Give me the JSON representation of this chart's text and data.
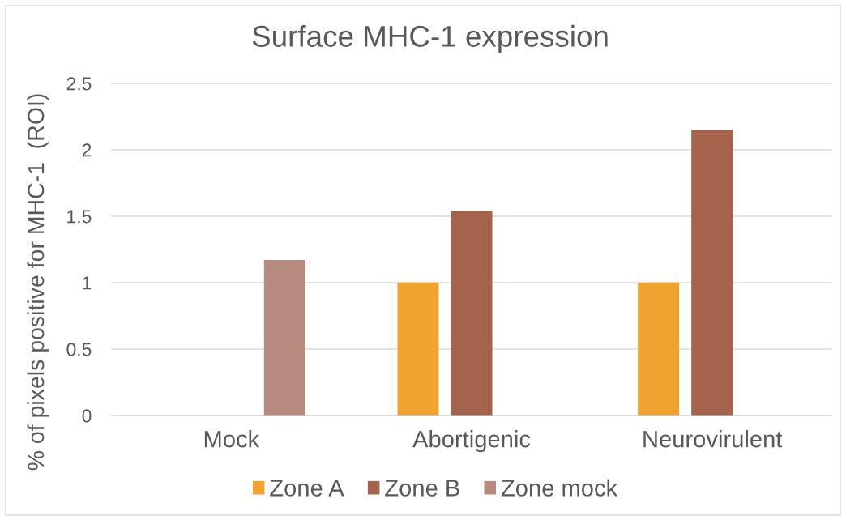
{
  "chart_data": {
    "type": "bar",
    "title": "Surface MHC-1 expression",
    "ylabel": "% of pixels positive for MHC-1  (ROI)",
    "categories": [
      "Mock",
      "Abortigenic",
      "Neurovirulent"
    ],
    "series": [
      {
        "name": "Zone A",
        "color": "#f0a330",
        "values": [
          null,
          1.0,
          1.0
        ]
      },
      {
        "name": "Zone B",
        "color": "#a5634c",
        "values": [
          null,
          1.54,
          2.15
        ]
      },
      {
        "name": "Zone mock",
        "color": "#b68a7e",
        "values": [
          1.17,
          null,
          null
        ]
      }
    ],
    "ylim": [
      0,
      2.5
    ],
    "yticks": [
      0,
      0.5,
      1,
      1.5,
      2,
      2.5
    ],
    "grid": "y",
    "legend": "bottom"
  }
}
